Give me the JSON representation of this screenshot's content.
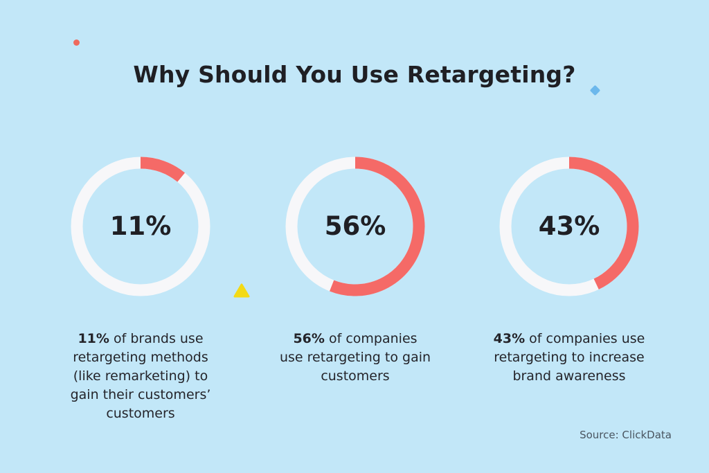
{
  "background_color": "#c2e7f8",
  "title": "Why Should You Use Retargeting?",
  "colors": {
    "ring_fill": "#f56a67",
    "ring_track": "#f7f7f9",
    "dot_red": "#ee6a5e",
    "diamond_blue": "#6cb8ec",
    "triangle_yellow": "#f3da16"
  },
  "chart_data": {
    "type": "pie",
    "charts": [
      {
        "value": 11,
        "label": "11%",
        "description_bold": "11%",
        "description_lines": [
          "of brands use",
          "retargeting methods",
          "(like remarketing) to",
          "gain their customers’",
          "customers"
        ]
      },
      {
        "value": 56,
        "label": "56%",
        "description_bold": "56%",
        "description_lines": [
          "of companies",
          "use retargeting to gain",
          "customers"
        ]
      },
      {
        "value": 43,
        "label": "43%",
        "description_bold": "43%",
        "description_lines": [
          "of companies use",
          "retargeting to increase",
          "brand awareness"
        ]
      }
    ]
  },
  "source": "Source: ClickData"
}
